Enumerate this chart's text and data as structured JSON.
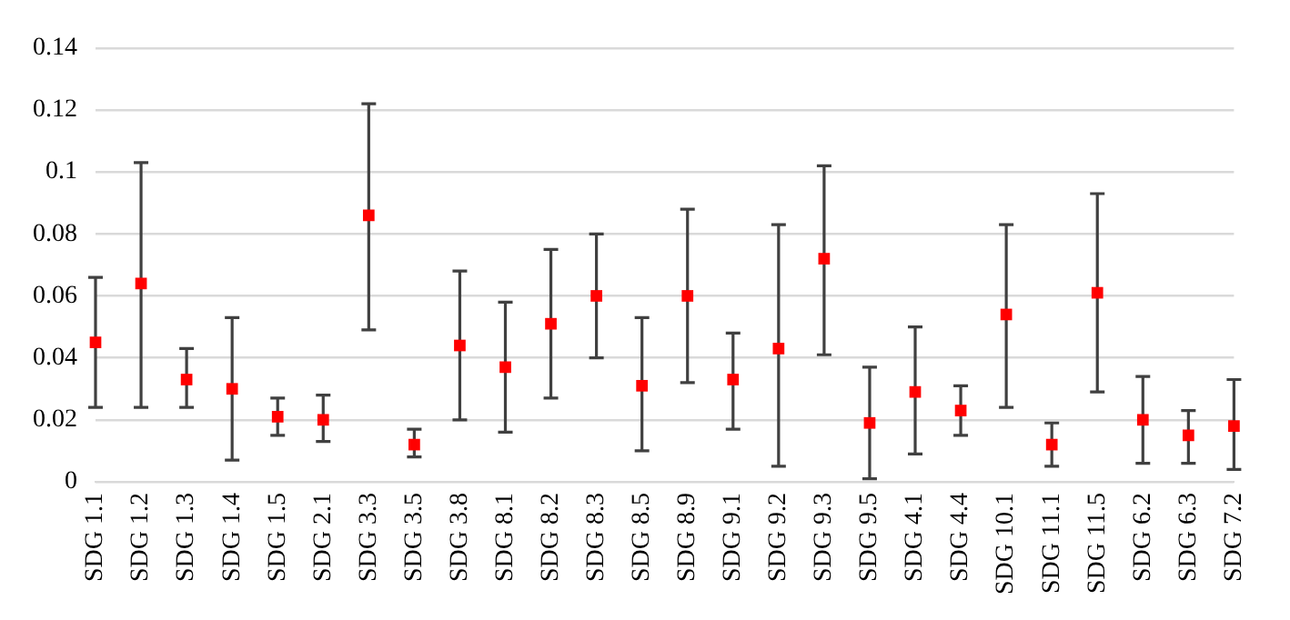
{
  "chart_data": {
    "type": "scatter",
    "categories": [
      "SDG 1.1",
      "SDG 1.2",
      "SDG 1.3",
      "SDG 1.4",
      "SDG 1.5",
      "SDG 2.1",
      "SDG 3.3",
      "SDG 3.5",
      "SDG 3.8",
      "SDG 8.1",
      "SDG 8.2",
      "SDG 8.3",
      "SDG 8.5",
      "SDG 8.9",
      "SDG 9.1",
      "SDG 9.2",
      "SDG 9.3",
      "SDG 9.5",
      "SDG 4.1",
      "SDG 4.4",
      "SDG 10.1",
      "SDG 11.1",
      "SDG 11.5",
      "SDG 6.2",
      "SDG 6.3",
      "SDG 7.2"
    ],
    "series": [
      {
        "color": "#ff0000",
        "values": [
          0.045,
          0.064,
          0.033,
          0.03,
          0.021,
          0.02,
          0.086,
          0.012,
          0.044,
          0.037,
          0.051,
          0.06,
          0.031,
          0.06,
          0.033,
          0.043,
          0.072,
          0.019,
          0.029,
          0.023,
          0.054,
          0.012,
          0.061,
          0.02,
          0.015,
          0.018
        ],
        "errors": [
          [
            0.024,
            0.066
          ],
          [
            0.024,
            0.103
          ],
          [
            0.024,
            0.043
          ],
          [
            0.007,
            0.053
          ],
          [
            0.015,
            0.027
          ],
          [
            0.013,
            0.028
          ],
          [
            0.049,
            0.122
          ],
          [
            0.008,
            0.017
          ],
          [
            0.02,
            0.068
          ],
          [
            0.016,
            0.058
          ],
          [
            0.027,
            0.075
          ],
          [
            0.04,
            0.08
          ],
          [
            0.01,
            0.053
          ],
          [
            0.032,
            0.088
          ],
          [
            0.017,
            0.048
          ],
          [
            0.005,
            0.083
          ],
          [
            0.041,
            0.102
          ],
          [
            0.001,
            0.037
          ],
          [
            0.009,
            0.05
          ],
          [
            0.015,
            0.031
          ],
          [
            0.024,
            0.083
          ],
          [
            0.005,
            0.019
          ],
          [
            0.029,
            0.093
          ],
          [
            0.006,
            0.034
          ],
          [
            0.006,
            0.023
          ],
          [
            0.004,
            0.033
          ]
        ]
      }
    ],
    "ylim": [
      0,
      0.14
    ],
    "yticks": [
      0,
      0.02,
      0.04,
      0.06,
      0.08,
      0.1,
      0.12,
      0.14
    ],
    "grid": "y",
    "legend": false,
    "marker": "square"
  }
}
